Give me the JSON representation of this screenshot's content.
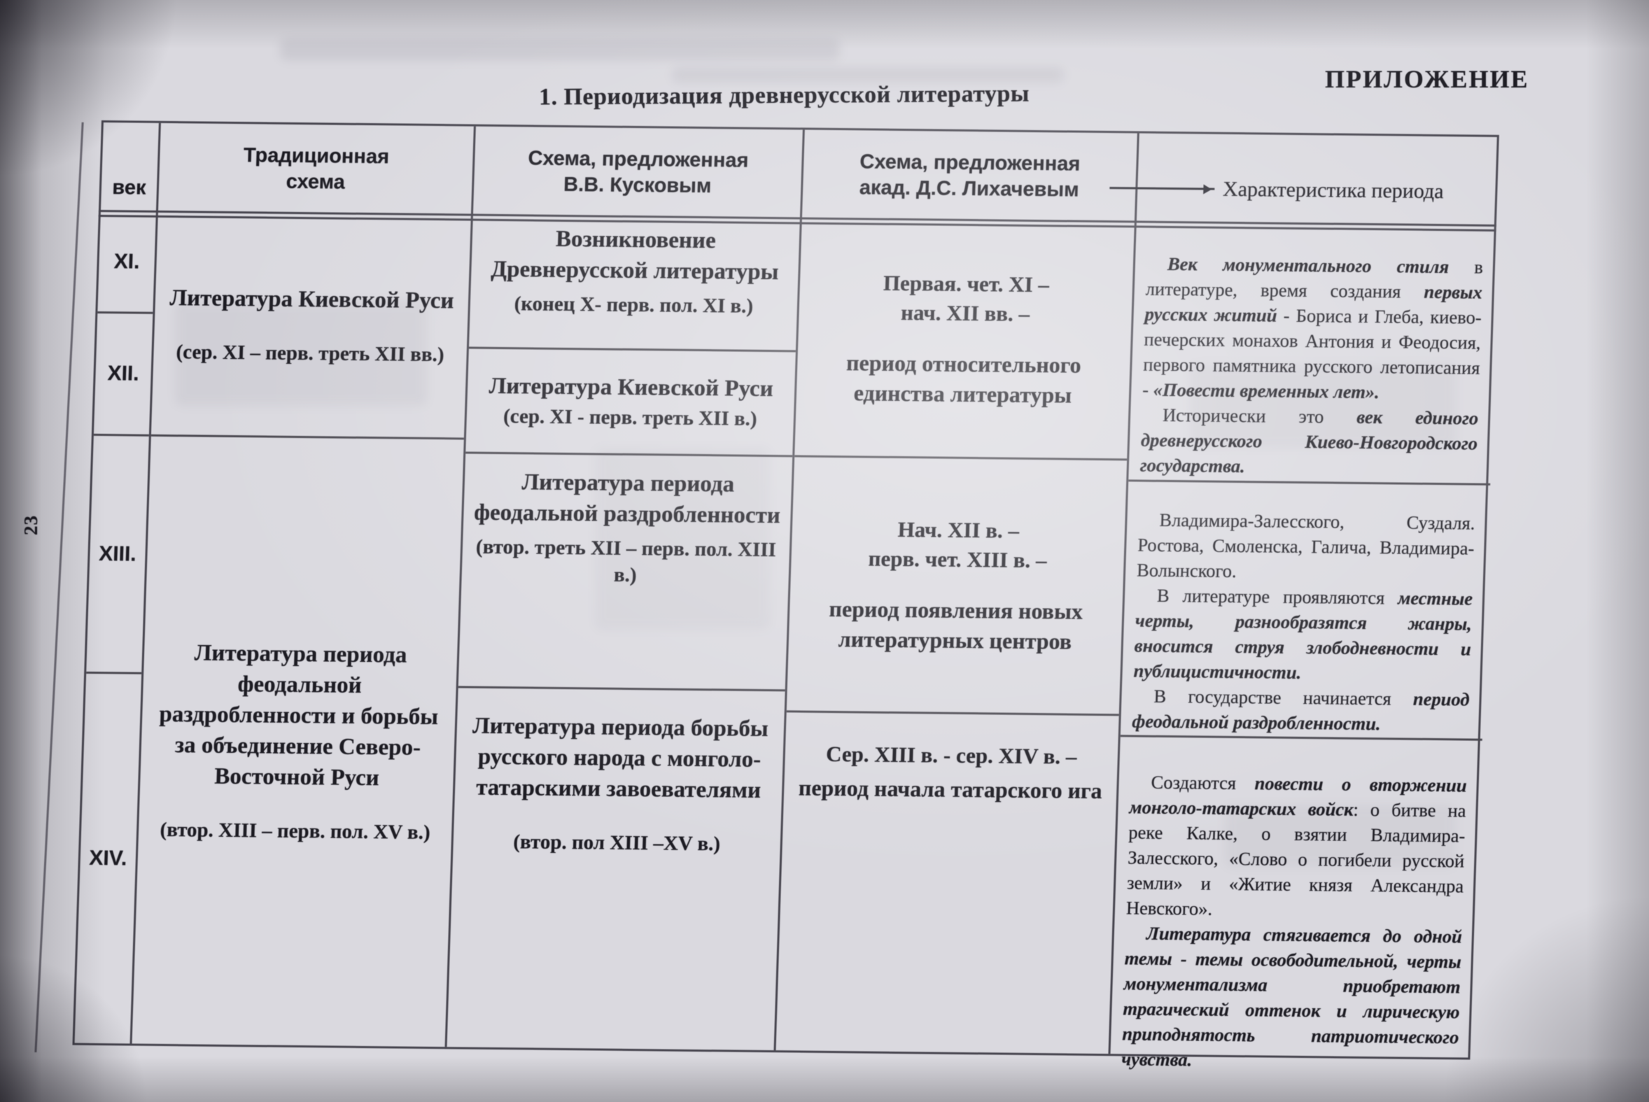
{
  "page": {
    "corner_label": "ПРИЛОЖЕНИЕ",
    "page_number": "23",
    "title": "1. Периодизация древнерусской литературы"
  },
  "table": {
    "headers": {
      "century": "век",
      "traditional": "Традиционная\nсхема",
      "kuskov": "Схема, предложенная\nВ.В. Кусковым",
      "likhachev": "Схема, предложенная\nакад. Д.С. Лихачевым",
      "characteristics": "Характеристика периода"
    },
    "century_rows": [
      "XI.",
      "XII.",
      "XIII.",
      "XIV."
    ],
    "traditional_cells": [
      {
        "title": "Литература Киевской Руси",
        "period": "(сер. XI – перв. треть XII вв.)"
      },
      {
        "title": "Литература периода феодальной раздробленности и борьбы за объединение Северо-Восточной Руси",
        "period": "(втор. XIII – перв. пол. XV в.)"
      }
    ],
    "kuskov_cells": [
      {
        "title": "Возникновение Древнерусской литературы",
        "period": "(конец X- перв. пол. XI в.)"
      },
      {
        "title": "Литература Киевской Руси",
        "period": "(сер. XI -  перв. треть XII в.)"
      },
      {
        "title": "Литература периода феодальной раздробленности",
        "period": "(втор. треть XII – перв. пол. XIII в.)"
      },
      {
        "title": "Литература периода борьбы русского народа с монголо-татарскими завоевателями",
        "period": "(втор. пол  XIII –XV в.)"
      }
    ],
    "likhachev_cells": [
      {
        "dates": "Первая. чет. XI –\nнач. XII вв. –",
        "label": "период относительного единства литературы"
      },
      {
        "dates": "Нач. XII в. –\nперв. чет. XIII в. –",
        "label": "период появления новых литературных центров"
      },
      {
        "dates": "Сер. XIII в. - сер. XIV в. –",
        "label": "период начала татарского ига"
      }
    ],
    "characteristics_cells": [
      {
        "paragraphs": [
          [
            {
              "t": "Век монументального стиля",
              "em": true
            },
            {
              "t": " в литературе, время создания ",
              "em": false
            },
            {
              "t": "первых русских житий",
              "em": true
            },
            {
              "t": " - Бориса и Глеба, киево-печерских монахов Антония и Феодосия, первого памятника русского летописания - ",
              "em": false
            },
            {
              "t": "«Повести временных лет».",
              "em": true
            }
          ],
          [
            {
              "t": "Исторически это ",
              "em": false
            },
            {
              "t": "век единого древнерусского Киево-Новгородского государства.",
              "em": true
            }
          ]
        ]
      },
      {
        "paragraphs": [
          [
            {
              "t": "Владимира-Залесского, Суздаля. Ростова, Смоленска, Галича, Владимира-Волынского.",
              "em": false
            }
          ],
          [
            {
              "t": "В литературе проявляются ",
              "em": false
            },
            {
              "t": "местные черты, разнообразятся жанры, вносится струя злободневности и публицистичности.",
              "em": true
            }
          ],
          [
            {
              "t": "В государстве начинается ",
              "em": false
            },
            {
              "t": "период феодальной раздробленности.",
              "em": true
            }
          ]
        ]
      },
      {
        "paragraphs": [
          [
            {
              "t": "Создаются ",
              "em": false
            },
            {
              "t": "повести о вторжении монголо-татарских войск",
              "em": true
            },
            {
              "t": ": о битве на реке Калке, о взятии Владимира-Залесского, «Слово о погибели русской земли» и «Житие князя Александра Невского».",
              "em": false
            }
          ],
          [
            {
              "t": "Литература стягивается до одной темы - темы освободительной, черты монументализма приобретают трагический оттенок и лирическую приподнятость патриотического чувства.",
              "em": true
            }
          ]
        ]
      }
    ]
  }
}
